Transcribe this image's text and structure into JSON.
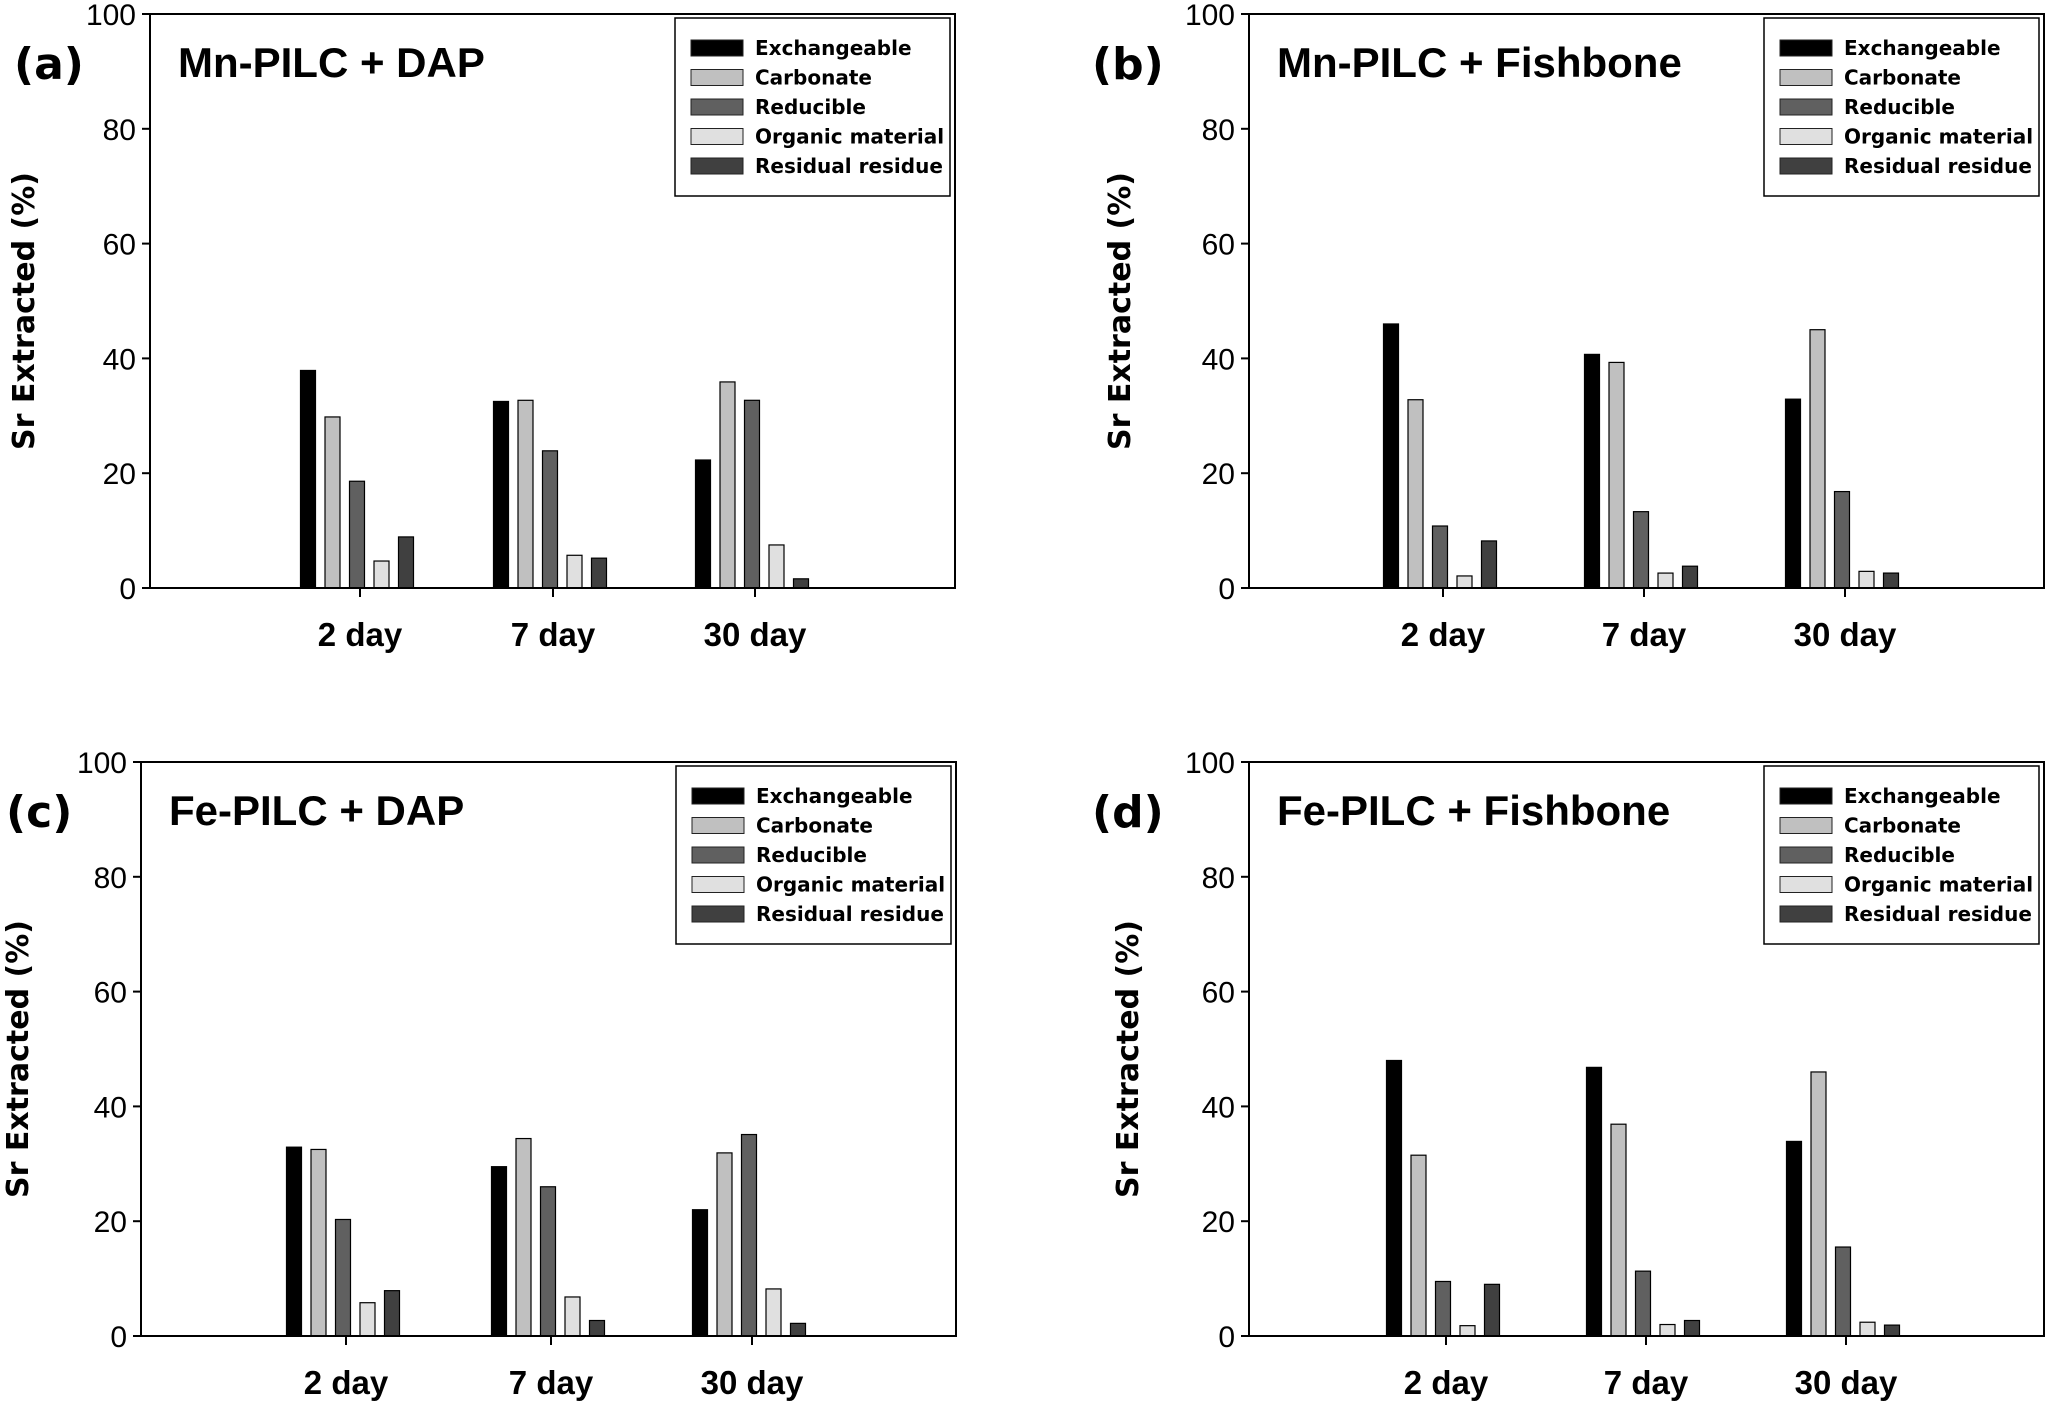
{
  "legend_labels": [
    "Exchangeable",
    "Carbonate",
    "Reducible",
    "Organic material",
    "Residual residue"
  ],
  "series_colors": [
    "#000000",
    "#c0c0c0",
    "#606060",
    "#e0e0e0",
    "#404040"
  ],
  "chart_data": [
    {
      "type": "bar",
      "panel_label": "(a)",
      "title": "Mn-PILC + DAP",
      "xlabel": "",
      "ylabel": "Sr Extracted (%)",
      "ylim": [
        0,
        100
      ],
      "yticks": [
        "0",
        "20",
        "40",
        "60",
        "80",
        "100"
      ],
      "categories": [
        "2 day",
        "7 day",
        "30 day"
      ],
      "legend_position": "top-right",
      "series": [
        {
          "name": "Exchangeable",
          "values": [
            37.9,
            32.5,
            22.3
          ]
        },
        {
          "name": "Carbonate",
          "values": [
            29.8,
            32.7,
            35.9
          ]
        },
        {
          "name": "Reducible",
          "values": [
            18.6,
            23.9,
            32.7
          ]
        },
        {
          "name": "Organic material",
          "values": [
            4.7,
            5.7,
            7.5
          ]
        },
        {
          "name": "Residual residue",
          "values": [
            8.9,
            5.2,
            1.6
          ]
        }
      ]
    },
    {
      "type": "bar",
      "panel_label": "(b)",
      "title": "Mn-PILC + Fishbone",
      "xlabel": "",
      "ylabel": "Sr Extracted (%)",
      "ylim": [
        0,
        100
      ],
      "yticks": [
        "0",
        "20",
        "40",
        "60",
        "80",
        "100"
      ],
      "categories": [
        "2 day",
        "7 day",
        "30 day"
      ],
      "legend_position": "top-right",
      "series": [
        {
          "name": "Exchangeable",
          "values": [
            46.0,
            40.7,
            32.9
          ]
        },
        {
          "name": "Carbonate",
          "values": [
            32.8,
            39.3,
            45.0
          ]
        },
        {
          "name": "Reducible",
          "values": [
            10.8,
            13.3,
            16.8
          ]
        },
        {
          "name": "Organic material",
          "values": [
            2.1,
            2.6,
            2.9
          ]
        },
        {
          "name": "Residual residue",
          "values": [
            8.2,
            3.8,
            2.6
          ]
        }
      ]
    },
    {
      "type": "bar",
      "panel_label": "(c)",
      "title": "Fe-PILC + DAP",
      "xlabel": "",
      "ylabel": "Sr Extracted (%)",
      "ylim": [
        0,
        100
      ],
      "yticks": [
        "0",
        "20",
        "40",
        "60",
        "80",
        "100"
      ],
      "categories": [
        "2 day",
        "7 day",
        "30 day"
      ],
      "legend_position": "top-right",
      "series": [
        {
          "name": "Exchangeable",
          "values": [
            32.9,
            29.5,
            22.0
          ]
        },
        {
          "name": "Carbonate",
          "values": [
            32.5,
            34.4,
            31.9
          ]
        },
        {
          "name": "Reducible",
          "values": [
            20.3,
            26.0,
            35.1
          ]
        },
        {
          "name": "Organic material",
          "values": [
            5.8,
            6.8,
            8.2
          ]
        },
        {
          "name": "Residual residue",
          "values": [
            7.9,
            2.7,
            2.2
          ]
        }
      ]
    },
    {
      "type": "bar",
      "panel_label": "(d)",
      "title": "Fe-PILC + Fishbone",
      "xlabel": "",
      "ylabel": "Sr Extracted (%)",
      "ylim": [
        0,
        100
      ],
      "yticks": [
        "0",
        "20",
        "40",
        "60",
        "80",
        "100"
      ],
      "categories": [
        "2 day",
        "7 day",
        "30 day"
      ],
      "legend_position": "top-right",
      "series": [
        {
          "name": "Exchangeable",
          "values": [
            48.0,
            46.8,
            33.9
          ]
        },
        {
          "name": "Carbonate",
          "values": [
            31.5,
            36.9,
            46.0
          ]
        },
        {
          "name": "Reducible",
          "values": [
            9.5,
            11.3,
            15.5
          ]
        },
        {
          "name": "Organic material",
          "values": [
            1.8,
            2.0,
            2.4
          ]
        },
        {
          "name": "Residual residue",
          "values": [
            9.0,
            2.7,
            1.9
          ]
        }
      ]
    }
  ]
}
